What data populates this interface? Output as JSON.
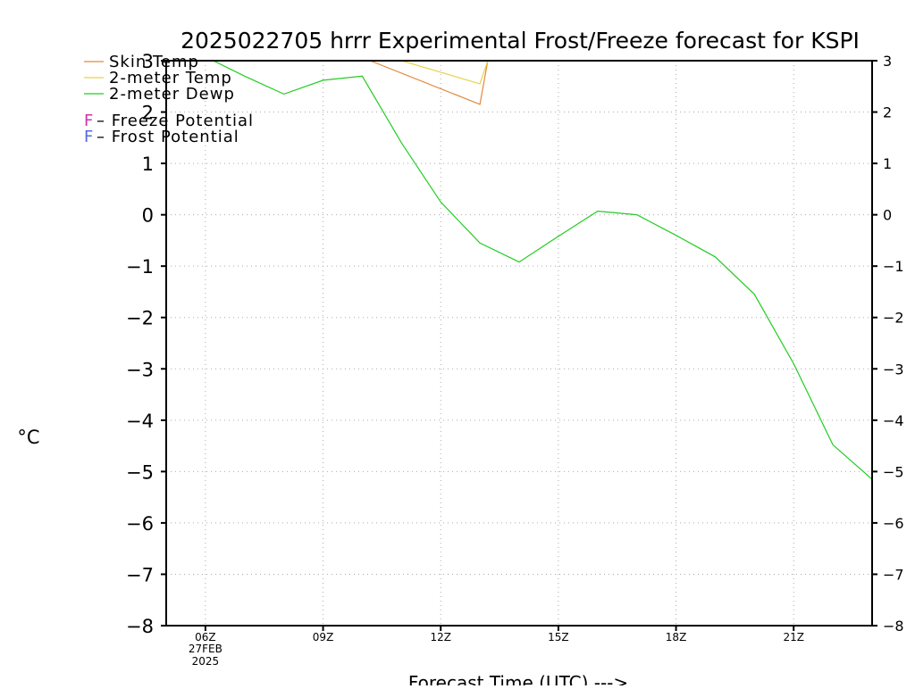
{
  "chart_data": {
    "type": "line",
    "title": "2025022705 hrrr Experimental Frost/Freeze forecast for KSPI",
    "ylabel": "°C",
    "xlabel": "Forecast Time (UTC) --->",
    "ylim": [
      -8,
      3
    ],
    "xlim": [
      5,
      23
    ],
    "yticks": [
      -8,
      -7,
      -6,
      -5,
      -4,
      -3,
      -2,
      -1,
      0,
      1,
      2,
      3
    ],
    "x_unit": "hours UTC, 27 FEB 2025",
    "xticks": [
      {
        "x": 6,
        "label": "06Z",
        "sublabel1": "27FEB",
        "sublabel2": "2025"
      },
      {
        "x": 9,
        "label": "09Z"
      },
      {
        "x": 12,
        "label": "12Z"
      },
      {
        "x": 15,
        "label": "15Z"
      },
      {
        "x": 18,
        "label": "18Z"
      },
      {
        "x": 21,
        "label": "21Z"
      }
    ],
    "grid": true,
    "legend_position": "top-left",
    "series": [
      {
        "name": "Skin Temp",
        "color": "#e08a3c",
        "points": [
          [
            10.2,
            3.0
          ],
          [
            13.0,
            2.15
          ],
          [
            13.2,
            3.0
          ]
        ]
      },
      {
        "name": "2-meter Temp",
        "color": "#e8d24a",
        "points": [
          [
            11.0,
            3.0
          ],
          [
            13.0,
            2.55
          ],
          [
            13.2,
            3.0
          ]
        ]
      },
      {
        "name": "2-meter Dewp",
        "color": "#22cc22",
        "points": [
          [
            6.2,
            3.0
          ],
          [
            7,
            2.7
          ],
          [
            8,
            2.35
          ],
          [
            9,
            2.62
          ],
          [
            10,
            2.7
          ],
          [
            11,
            1.4
          ],
          [
            12,
            0.25
          ],
          [
            13,
            -0.55
          ],
          [
            14,
            -0.92
          ],
          [
            15,
            -0.42
          ],
          [
            16,
            0.07
          ],
          [
            17,
            0.0
          ],
          [
            18,
            -0.4
          ],
          [
            19,
            -0.82
          ],
          [
            20,
            -1.55
          ],
          [
            21,
            -2.9
          ],
          [
            22,
            -4.48
          ],
          [
            23,
            -5.15
          ]
        ]
      }
    ],
    "annotations": [
      {
        "marker": "F",
        "text": " – Freeze Potential",
        "color": "#cc33aa"
      },
      {
        "marker": "F",
        "text": " – Frost Potential",
        "color": "#5566dd"
      }
    ]
  }
}
